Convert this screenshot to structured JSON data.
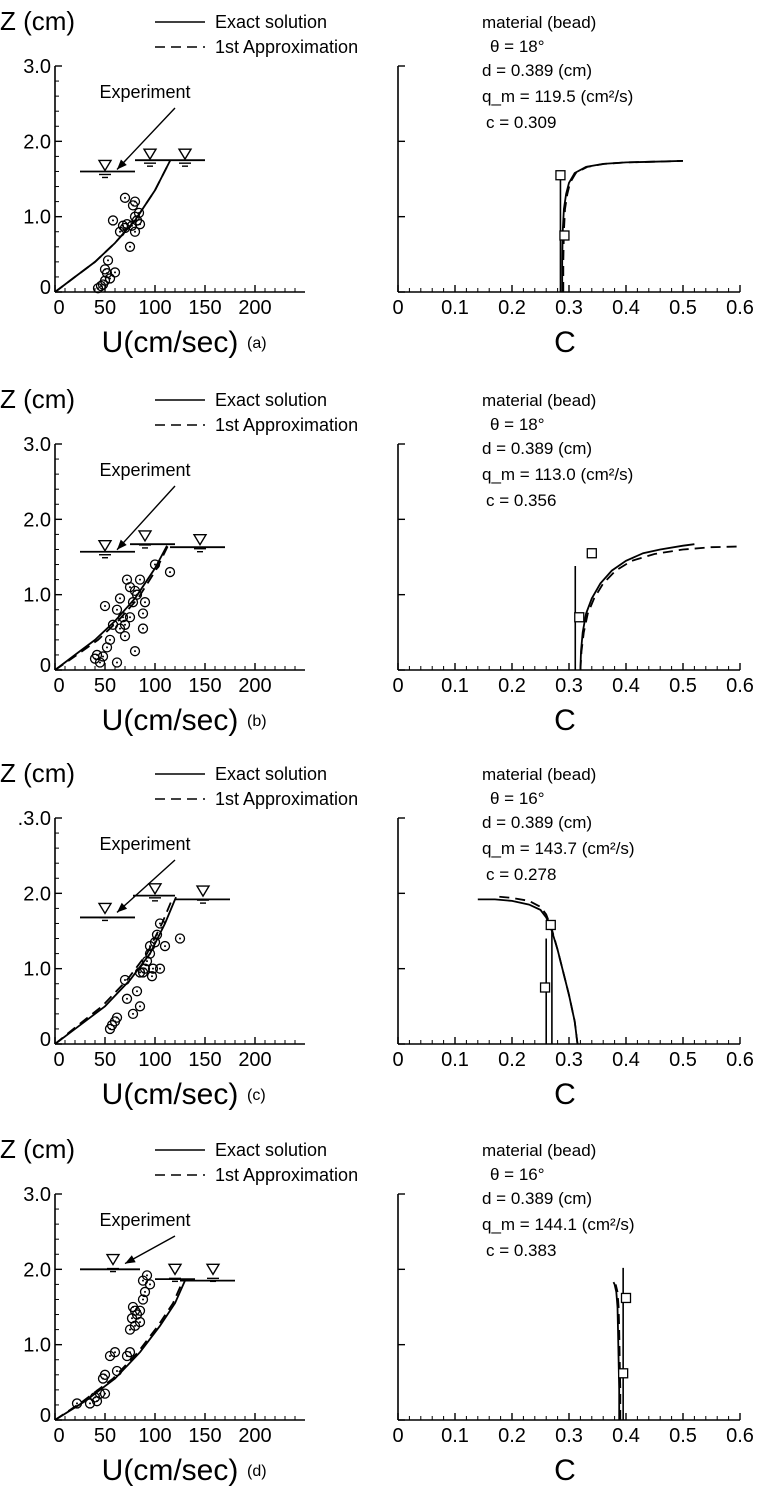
{
  "chart_data": [
    {
      "type": "line",
      "panel_label": "(a)",
      "ylabel": "Z (cm)",
      "left_xlabel": "U(cm/sec)",
      "right_xlabel": "C",
      "left_xlim": [
        0,
        250
      ],
      "right_xlim": [
        0,
        0.6
      ],
      "ylim": [
        0,
        3.0
      ],
      "left_xticks": [
        "0",
        "50",
        "100",
        "150",
        "200"
      ],
      "right_xticks": [
        "0",
        "0.1",
        "0.2",
        "0.3",
        "0.4",
        "0.5",
        "0.6"
      ],
      "yticks": [
        {
          "v": 0,
          "label": "0"
        },
        {
          "v": 1,
          "label": "1.0"
        },
        {
          "v": 2,
          "label": "2.0"
        },
        {
          "v": 3,
          "label": "3.0"
        }
      ],
      "legend": [
        "Exact solution",
        "1st Approximation"
      ],
      "annotation": "Experiment",
      "params": [
        "material (bead)",
        "θ = 18°",
        "d = 0.389 (cm)",
        "q_m = 119.5 (cm²/s)",
        "c = 0.309"
      ],
      "series": [
        {
          "name": "Exact solution",
          "x": [
            0,
            20,
            40,
            60,
            80,
            100,
            115
          ],
          "y": [
            0,
            0.2,
            0.4,
            0.65,
            0.95,
            1.35,
            1.74
          ]
        },
        {
          "name": "1st Approximation",
          "x": [
            0,
            20,
            40,
            60,
            80,
            100,
            115
          ],
          "y": [
            0,
            0.2,
            0.4,
            0.65,
            0.95,
            1.35,
            1.74
          ]
        }
      ],
      "experiment_points": [
        [
          43,
          0.05
        ],
        [
          46,
          0.08
        ],
        [
          48,
          0.1
        ],
        [
          50,
          0.15
        ],
        [
          52,
          0.25
        ],
        [
          50,
          0.3
        ],
        [
          53,
          0.42
        ],
        [
          55,
          0.18
        ],
        [
          60,
          0.26
        ],
        [
          58,
          0.95
        ],
        [
          65,
          0.8
        ],
        [
          68,
          0.88
        ],
        [
          70,
          0.85
        ],
        [
          72,
          0.9
        ],
        [
          70,
          1.25
        ],
        [
          75,
          0.6
        ],
        [
          77,
          0.88
        ],
        [
          80,
          0.8
        ],
        [
          80,
          1.0
        ],
        [
          82,
          0.95
        ],
        [
          84,
          1.05
        ],
        [
          78,
          1.15
        ],
        [
          80,
          1.2
        ],
        [
          85,
          0.9
        ]
      ],
      "surface_levels": [
        [
          50,
          1.6
        ],
        [
          95,
          1.75
        ],
        [
          130,
          1.75
        ]
      ],
      "surface_lines": [
        [
          [
            25,
            80
          ],
          1.6
        ],
        [
          [
            80,
            150
          ],
          1.75
        ]
      ],
      "c_curves": [
        {
          "name": "Exact solution",
          "x": [
            0.288,
            0.288,
            0.289,
            0.291,
            0.295,
            0.3,
            0.31,
            0.33,
            0.36,
            0.4,
            0.45,
            0.5
          ],
          "y": [
            0,
            0.4,
            0.8,
            1.1,
            1.3,
            1.45,
            1.58,
            1.66,
            1.7,
            1.72,
            1.73,
            1.74
          ]
        },
        {
          "name": "1st Approximation",
          "x": [
            0.29,
            0.29,
            0.291,
            0.293,
            0.297,
            0.302,
            0.312,
            0.332,
            0.362,
            0.4,
            0.45,
            0.5
          ],
          "y": [
            0,
            0.4,
            0.8,
            1.1,
            1.3,
            1.45,
            1.58,
            1.66,
            1.7,
            1.72,
            1.73,
            1.74
          ]
        }
      ],
      "c_points": [
        [
          0.285,
          1.55
        ],
        [
          0.292,
          0.75
        ]
      ],
      "c_verticals": [
        [
          0.285,
          0,
          1.6
        ]
      ]
    },
    {
      "type": "line",
      "panel_label": "(b)",
      "ylabel": "Z (cm)",
      "left_xlabel": "U(cm/sec)",
      "right_xlabel": "C",
      "left_xlim": [
        0,
        250
      ],
      "right_xlim": [
        0,
        0.6
      ],
      "ylim": [
        0,
        3.0
      ],
      "left_xticks": [
        "0",
        "50",
        "100",
        "150",
        "200"
      ],
      "right_xticks": [
        "0",
        "0.1",
        "0.2",
        "0.3",
        "0.4",
        "0.5",
        "0.6"
      ],
      "yticks": [
        {
          "v": 0,
          "label": "0"
        },
        {
          "v": 1,
          "label": "1.0"
        },
        {
          "v": 2,
          "label": "2.0"
        },
        {
          "v": 3,
          "label": "3.0"
        }
      ],
      "legend": [
        "Exact solution",
        "1st Approximation"
      ],
      "annotation": "Experiment",
      "params": [
        "material (bead)",
        "θ = 18°",
        "d = 0.389 (cm)",
        "q_m = 113.0 (cm²/s)",
        "c = 0.356"
      ],
      "series": [
        {
          "name": "Exact solution",
          "x": [
            0,
            20,
            40,
            60,
            80,
            100,
            112
          ],
          "y": [
            0,
            0.2,
            0.4,
            0.65,
            0.95,
            1.35,
            1.65
          ]
        },
        {
          "name": "1st Approximation",
          "x": [
            0,
            22,
            43,
            63,
            83,
            102,
            113
          ],
          "y": [
            0,
            0.2,
            0.4,
            0.65,
            0.95,
            1.35,
            1.65
          ]
        }
      ],
      "experiment_points": [
        [
          40,
          0.15
        ],
        [
          42,
          0.2
        ],
        [
          45,
          0.1
        ],
        [
          48,
          0.18
        ],
        [
          50,
          0.85
        ],
        [
          52,
          0.3
        ],
        [
          55,
          0.4
        ],
        [
          58,
          0.6
        ],
        [
          62,
          0.8
        ],
        [
          62,
          0.1
        ],
        [
          65,
          0.95
        ],
        [
          65,
          0.55
        ],
        [
          68,
          0.7
        ],
        [
          70,
          0.45
        ],
        [
          70,
          0.6
        ],
        [
          72,
          1.2
        ],
        [
          75,
          1.1
        ],
        [
          75,
          0.7
        ],
        [
          78,
          0.9
        ],
        [
          80,
          1.05
        ],
        [
          80,
          0.25
        ],
        [
          82,
          1.0
        ],
        [
          85,
          1.2
        ],
        [
          88,
          0.55
        ],
        [
          88,
          0.75
        ],
        [
          90,
          0.9
        ],
        [
          100,
          1.4
        ],
        [
          115,
          1.3
        ]
      ],
      "surface_levels": [
        [
          50,
          1.57
        ],
        [
          90,
          1.7
        ],
        [
          145,
          1.65
        ]
      ],
      "surface_lines": [
        [
          [
            25,
            80
          ],
          1.57
        ],
        [
          [
            75,
            120
          ],
          1.67
        ],
        [
          [
            115,
            170
          ],
          1.63
        ]
      ],
      "c_curves": [
        {
          "name": "Exact solution",
          "x": [
            0.32,
            0.321,
            0.324,
            0.33,
            0.34,
            0.355,
            0.375,
            0.4,
            0.43,
            0.46,
            0.5,
            0.52
          ],
          "y": [
            0,
            0.25,
            0.5,
            0.75,
            0.95,
            1.15,
            1.32,
            1.45,
            1.55,
            1.6,
            1.65,
            1.67
          ]
        },
        {
          "name": "1st Approximation",
          "x": [
            0.32,
            0.322,
            0.326,
            0.333,
            0.344,
            0.36,
            0.382,
            0.41,
            0.45,
            0.5,
            0.55,
            0.6
          ],
          "y": [
            0,
            0.25,
            0.5,
            0.75,
            0.95,
            1.15,
            1.32,
            1.45,
            1.54,
            1.6,
            1.63,
            1.64
          ]
        }
      ],
      "c_points": [
        [
          0.318,
          0.7
        ],
        [
          0.34,
          1.55
        ]
      ],
      "c_verticals": [
        [
          0.311,
          0,
          1.38
        ]
      ]
    },
    {
      "type": "line",
      "panel_label": "(c)",
      "ylabel": "Z (cm)",
      "left_xlabel": "U(cm/sec)",
      "right_xlabel": "C",
      "left_xlim": [
        0,
        250
      ],
      "right_xlim": [
        0,
        0.6
      ],
      "ylim": [
        0,
        3.0
      ],
      "left_xticks": [
        "0",
        "50",
        "100",
        "150",
        "200"
      ],
      "right_xticks": [
        "0",
        "0.1",
        "0.2",
        "0.3",
        "0.4",
        "0.5",
        "0.6"
      ],
      "yticks": [
        {
          "v": 0,
          "label": "0"
        },
        {
          "v": 1,
          "label": "1.0"
        },
        {
          "v": 2,
          "label": "2.0"
        },
        {
          "v": 3,
          "label": ".3.0"
        }
      ],
      "legend": [
        "Exact solution",
        "1st Approximation"
      ],
      "annotation": "Experiment",
      "params": [
        "material (bead)",
        "θ = 16°",
        "d = 0.389 (cm)",
        "q_m = 143.7 (cm²/s)",
        "c = 0.278"
      ],
      "series": [
        {
          "name": "Exact solution",
          "x": [
            0,
            25,
            50,
            75,
            95,
            110,
            121
          ],
          "y": [
            0,
            0.25,
            0.5,
            0.85,
            1.2,
            1.6,
            1.95
          ]
        },
        {
          "name": "1st Approximation",
          "x": [
            0,
            23,
            47,
            72,
            92,
            107,
            118
          ],
          "y": [
            0,
            0.25,
            0.5,
            0.85,
            1.2,
            1.6,
            1.95
          ]
        }
      ],
      "experiment_points": [
        [
          55,
          0.2
        ],
        [
          57,
          0.25
        ],
        [
          60,
          0.3
        ],
        [
          62,
          0.35
        ],
        [
          70,
          0.85
        ],
        [
          72,
          0.6
        ],
        [
          78,
          0.4
        ],
        [
          82,
          0.7
        ],
        [
          85,
          0.5
        ],
        [
          85,
          0.95
        ],
        [
          88,
          0.95
        ],
        [
          90,
          1.0
        ],
        [
          92,
          1.1
        ],
        [
          95,
          1.2
        ],
        [
          95,
          1.3
        ],
        [
          97,
          0.9
        ],
        [
          98,
          1.0
        ],
        [
          100,
          1.35
        ],
        [
          102,
          1.45
        ],
        [
          105,
          1.6
        ],
        [
          105,
          1.0
        ],
        [
          110,
          1.3
        ],
        [
          125,
          1.4
        ]
      ],
      "surface_levels": [
        [
          50,
          1.72
        ],
        [
          100,
          1.98
        ],
        [
          148,
          1.95
        ]
      ],
      "surface_lines": [
        [
          [
            25,
            80
          ],
          1.68
        ],
        [
          [
            78,
            120
          ],
          1.97
        ],
        [
          [
            120,
            175
          ],
          1.92
        ]
      ],
      "c_curves": [
        {
          "name": "Exact solution",
          "x": [
            0.315,
            0.31,
            0.3,
            0.29,
            0.28,
            0.27,
            0.26,
            0.25,
            0.23,
            0.2,
            0.17,
            0.14
          ],
          "y": [
            0,
            0.3,
            0.65,
            0.95,
            1.25,
            1.5,
            1.68,
            1.78,
            1.85,
            1.9,
            1.92,
            1.92
          ]
        },
        {
          "name": "1st Approximation",
          "x": [
            0.315,
            0.31,
            0.3,
            0.29,
            0.28,
            0.27,
            0.26,
            0.25,
            0.23,
            0.2,
            0.17
          ],
          "y": [
            0,
            0.3,
            0.65,
            0.95,
            1.25,
            1.52,
            1.72,
            1.82,
            1.9,
            1.94,
            1.96
          ]
        }
      ],
      "c_points": [
        [
          0.258,
          0.75
        ],
        [
          0.268,
          1.58
        ]
      ],
      "c_verticals": [
        [
          0.26,
          0,
          1.4
        ],
        [
          0.27,
          0,
          1.6
        ]
      ]
    },
    {
      "type": "line",
      "panel_label": "(d)",
      "ylabel": "Z (cm)",
      "left_xlabel": "U(cm/sec)",
      "right_xlabel": "C",
      "left_xlim": [
        0,
        250
      ],
      "right_xlim": [
        0,
        0.6
      ],
      "ylim": [
        0,
        3.0
      ],
      "left_xticks": [
        "0",
        "50",
        "100",
        "150",
        "200"
      ],
      "right_xticks": [
        "0",
        "0.1",
        "0.2",
        "0.3",
        "0.4",
        "0.5",
        "0.6"
      ],
      "yticks": [
        {
          "v": 0,
          "label": "0"
        },
        {
          "v": 1,
          "label": "1.0"
        },
        {
          "v": 2,
          "label": "2.0"
        },
        {
          "v": 3,
          "label": "3.0"
        }
      ],
      "legend": [
        "Exact solution",
        "1st Approximation"
      ],
      "annotation": "Experiment",
      "params": [
        "material (bead)",
        "θ = 16°",
        "d = 0.389 (cm)",
        "q_m = 144.1 (cm²/s)",
        "c = 0.383"
      ],
      "series": [
        {
          "name": "Exact solution",
          "x": [
            0,
            30,
            60,
            85,
            105,
            120,
            130
          ],
          "y": [
            0,
            0.25,
            0.55,
            0.9,
            1.25,
            1.55,
            1.85
          ]
        },
        {
          "name": "1st Approximation",
          "x": [
            0,
            28,
            58,
            83,
            103,
            118,
            128
          ],
          "y": [
            0,
            0.25,
            0.55,
            0.9,
            1.25,
            1.55,
            1.85
          ]
        }
      ],
      "experiment_points": [
        [
          22,
          0.22
        ],
        [
          35,
          0.22
        ],
        [
          40,
          0.3
        ],
        [
          42,
          0.25
        ],
        [
          45,
          0.35
        ],
        [
          48,
          0.55
        ],
        [
          50,
          0.6
        ],
        [
          50,
          0.35
        ],
        [
          55,
          0.85
        ],
        [
          60,
          0.9
        ],
        [
          62,
          0.65
        ],
        [
          72,
          0.85
        ],
        [
          75,
          1.2
        ],
        [
          75,
          0.9
        ],
        [
          77,
          1.35
        ],
        [
          78,
          1.5
        ],
        [
          80,
          1.25
        ],
        [
          80,
          1.45
        ],
        [
          82,
          1.4
        ],
        [
          85,
          1.45
        ],
        [
          85,
          1.3
        ],
        [
          88,
          1.6
        ],
        [
          88,
          1.85
        ],
        [
          90,
          1.7
        ],
        [
          92,
          1.92
        ],
        [
          95,
          1.8
        ]
      ],
      "surface_levels": [
        [
          58,
          2.05
        ],
        [
          120,
          1.92
        ],
        [
          158,
          1.92
        ]
      ],
      "surface_lines": [
        [
          [
            25,
            85
          ],
          2.0
        ],
        [
          [
            100,
            140
          ],
          1.87
        ],
        [
          [
            125,
            180
          ],
          1.85
        ]
      ],
      "c_curves": [
        {
          "name": "Exact solution",
          "x": [
            0.388,
            0.388,
            0.387,
            0.386,
            0.385,
            0.383,
            0.38,
            0.378
          ],
          "y": [
            0,
            0.4,
            0.8,
            1.2,
            1.5,
            1.7,
            1.8,
            1.83
          ]
        },
        {
          "name": "1st Approximation",
          "x": [
            0.39,
            0.39,
            0.389,
            0.388,
            0.387,
            0.385,
            0.382
          ],
          "y": [
            0,
            0.4,
            0.8,
            1.2,
            1.5,
            1.7,
            1.8
          ]
        }
      ],
      "c_points": [
        [
          0.395,
          0.62
        ],
        [
          0.4,
          1.62
        ]
      ],
      "c_verticals": [
        [
          0.395,
          0,
          2.02
        ]
      ]
    }
  ]
}
